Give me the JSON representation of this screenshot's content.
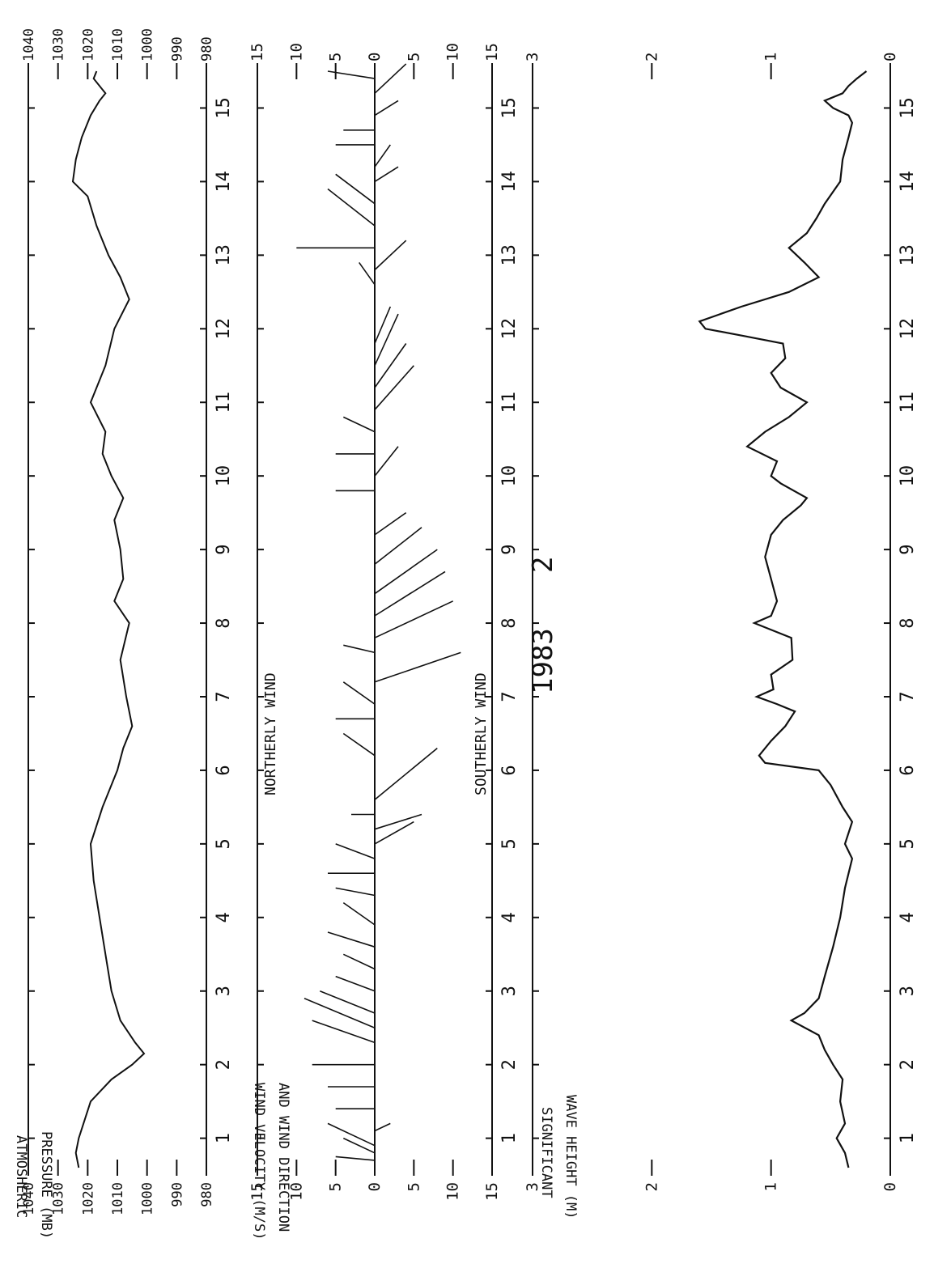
{
  "chart_data": [
    {
      "type": "line",
      "panel": "pressure",
      "ylabel": [
        "ATMOSHERIC",
        "PRESSURE (MB)"
      ],
      "yticks": [
        "1040",
        "1030",
        "1020",
        "1010",
        "1000",
        "990",
        "980"
      ],
      "xticks": [
        "1",
        "2",
        "3",
        "4",
        "5",
        "6",
        "7",
        "8",
        "9",
        "10",
        "11",
        "12",
        "13",
        "14",
        "15"
      ],
      "xlim": [
        0.6,
        15.5
      ],
      "ylim": [
        980,
        1040
      ],
      "grid": false,
      "series": [
        {
          "x": [
            0.6,
            0.8,
            1.0,
            1.5,
            1.8,
            2.0,
            2.15,
            2.3,
            2.6,
            3.0,
            3.5,
            4.0,
            4.5,
            5.0,
            5.5,
            6.0,
            6.3,
            6.6,
            7.0,
            7.5,
            8.0,
            8.3,
            8.6,
            9.0,
            9.4,
            9.7,
            10.0,
            10.3,
            10.6,
            11.0,
            11.5,
            12.0,
            12.4,
            12.7,
            13.0,
            13.4,
            13.8,
            14.0,
            14.3,
            14.6,
            14.9,
            15.1,
            15.2,
            15.4,
            15.5
          ],
          "y": [
            1023,
            1024,
            1023,
            1019,
            1012,
            1005,
            1001,
            1004,
            1009,
            1012,
            1014,
            1016,
            1018,
            1019,
            1015,
            1010,
            1008,
            1005,
            1007,
            1009,
            1006,
            1011,
            1008,
            1009,
            1011,
            1008,
            1012,
            1015,
            1014,
            1019,
            1014,
            1011,
            1006,
            1009,
            1013,
            1017,
            1020,
            1025,
            1024,
            1022,
            1019,
            1016,
            1014,
            1018,
            1017
          ]
        }
      ]
    },
    {
      "type": "vector",
      "panel": "wind",
      "ylabel": [
        "WIND VELOCITY (M/S)",
        "AND WIND DIRECTION"
      ],
      "yticks": [
        "15",
        "10",
        "5",
        "0",
        "5",
        "10",
        "15"
      ],
      "yticks_right": [
        "15",
        "10",
        "5",
        "0",
        "5",
        "10",
        "15"
      ],
      "xticks": [
        "1",
        "2",
        "3",
        "4",
        "5",
        "6",
        "7",
        "8",
        "9",
        "10",
        "11",
        "12",
        "13",
        "14",
        "15"
      ],
      "xlim": [
        0.6,
        15.5
      ],
      "ylim": [
        -15,
        15
      ],
      "annotations": [
        "NORTHERLY WIND",
        "SOUTHERLY WIND"
      ],
      "vectors": [
        {
          "t": 0.7,
          "v": 5,
          "dt": 0.05
        },
        {
          "t": 0.8,
          "v": 4,
          "dt": 0.2
        },
        {
          "t": 0.9,
          "v": 6,
          "dt": 0.3
        },
        {
          "t": 1.1,
          "v": -2,
          "dt": 0.1
        },
        {
          "t": 1.4,
          "v": 5,
          "dt": 0.0
        },
        {
          "t": 1.7,
          "v": 6,
          "dt": 0.0
        },
        {
          "t": 2.0,
          "v": 8,
          "dt": 0.0
        },
        {
          "t": 2.3,
          "v": 8,
          "dt": 0.3
        },
        {
          "t": 2.5,
          "v": 9,
          "dt": 0.4
        },
        {
          "t": 2.7,
          "v": 7,
          "dt": 0.3
        },
        {
          "t": 3.0,
          "v": 5,
          "dt": 0.2
        },
        {
          "t": 3.3,
          "v": 4,
          "dt": 0.2
        },
        {
          "t": 3.6,
          "v": 6,
          "dt": 0.2
        },
        {
          "t": 3.9,
          "v": 4,
          "dt": 0.3
        },
        {
          "t": 4.3,
          "v": 5,
          "dt": 0.1
        },
        {
          "t": 4.6,
          "v": 6,
          "dt": 0.0
        },
        {
          "t": 4.8,
          "v": 5,
          "dt": 0.2
        },
        {
          "t": 5.0,
          "v": -5,
          "dt": 0.3
        },
        {
          "t": 5.2,
          "v": -6,
          "dt": 0.2
        },
        {
          "t": 5.4,
          "v": 3,
          "dt": 0.0
        },
        {
          "t": 5.6,
          "v": -8,
          "dt": 0.7
        },
        {
          "t": 6.2,
          "v": 4,
          "dt": 0.3
        },
        {
          "t": 6.7,
          "v": 5,
          "dt": 0.0
        },
        {
          "t": 6.9,
          "v": 4,
          "dt": 0.3
        },
        {
          "t": 7.2,
          "v": -11,
          "dt": 0.4
        },
        {
          "t": 7.6,
          "v": 4,
          "dt": 0.1
        },
        {
          "t": 7.8,
          "v": -10,
          "dt": 0.5
        },
        {
          "t": 8.1,
          "v": -9,
          "dt": 0.6
        },
        {
          "t": 8.4,
          "v": -8,
          "dt": 0.6
        },
        {
          "t": 8.8,
          "v": -6,
          "dt": 0.5
        },
        {
          "t": 9.2,
          "v": -4,
          "dt": 0.3
        },
        {
          "t": 9.8,
          "v": 5,
          "dt": 0.0
        },
        {
          "t": 10.0,
          "v": -3,
          "dt": 0.4
        },
        {
          "t": 10.3,
          "v": 5,
          "dt": 0.0
        },
        {
          "t": 10.6,
          "v": 4,
          "dt": 0.2
        },
        {
          "t": 10.9,
          "v": -5,
          "dt": 0.6
        },
        {
          "t": 11.2,
          "v": -4,
          "dt": 0.6
        },
        {
          "t": 11.5,
          "v": -3,
          "dt": 0.7
        },
        {
          "t": 11.8,
          "v": -2,
          "dt": 0.5
        },
        {
          "t": 12.6,
          "v": 2,
          "dt": 0.3
        },
        {
          "t": 12.8,
          "v": -4,
          "dt": 0.4
        },
        {
          "t": 13.1,
          "v": 10,
          "dt": 0.0
        },
        {
          "t": 13.4,
          "v": 6,
          "dt": 0.5
        },
        {
          "t": 13.7,
          "v": 5,
          "dt": 0.4
        },
        {
          "t": 14.0,
          "v": -3,
          "dt": 0.2
        },
        {
          "t": 14.2,
          "v": -2,
          "dt": 0.3
        },
        {
          "t": 14.5,
          "v": 5,
          "dt": 0.0
        },
        {
          "t": 14.7,
          "v": 4,
          "dt": 0.0
        },
        {
          "t": 14.9,
          "v": -3,
          "dt": 0.2
        },
        {
          "t": 15.2,
          "v": -4,
          "dt": 0.4
        },
        {
          "t": 15.4,
          "v": 6,
          "dt": 0.1
        }
      ]
    },
    {
      "type": "line",
      "panel": "wave",
      "ylabel": [
        "SIGNIFICANT",
        "WAVE HEIGHT (M)"
      ],
      "yticks": [
        "3",
        "2",
        "1",
        "0"
      ],
      "yticks_right": [
        "3",
        "2",
        "1",
        "0"
      ],
      "xticks": [
        "1",
        "2",
        "3",
        "4",
        "5",
        "6",
        "7",
        "8",
        "9",
        "10",
        "11",
        "12",
        "13",
        "14",
        "15"
      ],
      "xlim": [
        0.6,
        15.5
      ],
      "ylim": [
        0,
        3
      ],
      "annotations": [
        "1983",
        "2"
      ],
      "series": [
        {
          "x": [
            0.6,
            0.8,
            1.0,
            1.2,
            1.5,
            1.8,
            2.0,
            2.2,
            2.4,
            2.6,
            2.7,
            2.9,
            3.2,
            3.6,
            4.0,
            4.4,
            4.8,
            5.0,
            5.3,
            5.5,
            5.8,
            6.0,
            6.1,
            6.2,
            6.4,
            6.6,
            6.8,
            6.9,
            7.0,
            7.1,
            7.3,
            7.5,
            7.8,
            8.0,
            8.1,
            8.3,
            8.6,
            8.9,
            9.2,
            9.4,
            9.6,
            9.7,
            9.9,
            10.0,
            10.2,
            10.4,
            10.6,
            10.8,
            11.0,
            11.2,
            11.4,
            11.6,
            11.8,
            11.9,
            12.0,
            12.1,
            12.3,
            12.5,
            12.7,
            12.9,
            13.1,
            13.3,
            13.5,
            13.7,
            14.0,
            14.3,
            14.6,
            14.8,
            14.9,
            15.0,
            15.1,
            15.2,
            15.3,
            15.4,
            15.5
          ],
          "y": [
            0.35,
            0.38,
            0.45,
            0.38,
            0.42,
            0.4,
            0.48,
            0.55,
            0.6,
            0.83,
            0.72,
            0.6,
            0.55,
            0.48,
            0.42,
            0.38,
            0.32,
            0.38,
            0.32,
            0.4,
            0.5,
            0.6,
            1.05,
            1.1,
            1.0,
            0.88,
            0.8,
            0.95,
            1.12,
            0.98,
            1.0,
            0.82,
            0.83,
            1.14,
            1.0,
            0.95,
            1.0,
            1.05,
            1.0,
            0.9,
            0.75,
            0.7,
            0.92,
            1.0,
            0.95,
            1.2,
            1.05,
            0.85,
            0.7,
            0.92,
            1.0,
            0.88,
            0.9,
            1.22,
            1.55,
            1.6,
            1.25,
            0.85,
            0.6,
            0.72,
            0.85,
            0.7,
            0.62,
            0.55,
            0.42,
            0.4,
            0.35,
            0.32,
            0.35,
            0.48,
            0.55,
            0.4,
            0.35,
            0.28,
            0.2
          ]
        }
      ]
    }
  ]
}
